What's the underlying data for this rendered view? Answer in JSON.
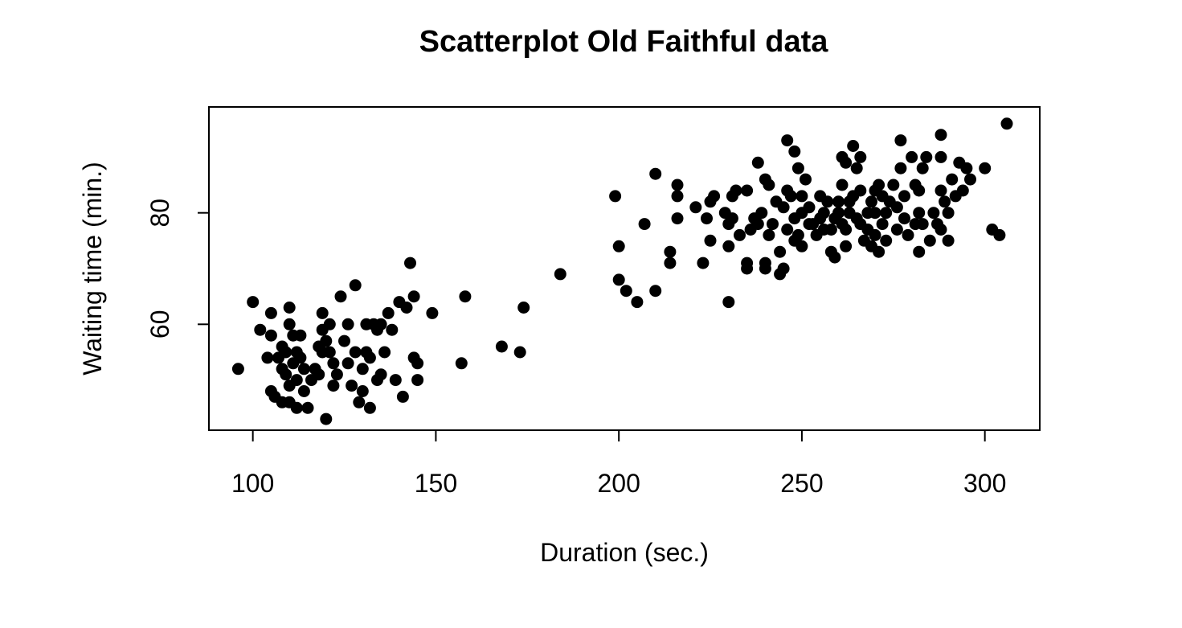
{
  "chart_data": {
    "type": "scatter",
    "title": "Scatterplot Old Faithful data",
    "xlabel": "Duration (sec.)",
    "ylabel": "Waiting time (min.)",
    "xlim": [
      88,
      315
    ],
    "ylim": [
      41,
      99
    ],
    "xticks": [
      100,
      150,
      200,
      250,
      300
    ],
    "yticks": [
      60,
      80
    ],
    "grid": false,
    "legend": "none",
    "marker_color": "#000000",
    "points": [
      [
        96,
        52
      ],
      [
        100,
        64
      ],
      [
        102,
        59
      ],
      [
        104,
        54
      ],
      [
        105,
        62
      ],
      [
        105,
        58
      ],
      [
        105,
        48
      ],
      [
        106,
        47
      ],
      [
        107,
        54
      ],
      [
        108,
        52
      ],
      [
        108,
        56
      ],
      [
        108,
        46
      ],
      [
        109,
        55
      ],
      [
        109,
        51
      ],
      [
        110,
        63
      ],
      [
        110,
        60
      ],
      [
        110,
        49
      ],
      [
        110,
        46
      ],
      [
        111,
        58
      ],
      [
        111,
        53
      ],
      [
        112,
        55
      ],
      [
        112,
        50
      ],
      [
        112,
        45
      ],
      [
        113,
        54
      ],
      [
        113,
        58
      ],
      [
        114,
        48
      ],
      [
        114,
        52
      ],
      [
        115,
        45
      ],
      [
        116,
        50
      ],
      [
        117,
        52
      ],
      [
        118,
        56
      ],
      [
        118,
        51
      ],
      [
        119,
        62
      ],
      [
        119,
        55
      ],
      [
        119,
        59
      ],
      [
        120,
        43
      ],
      [
        120,
        57
      ],
      [
        121,
        55
      ],
      [
        121,
        60
      ],
      [
        122,
        49
      ],
      [
        122,
        53
      ],
      [
        123,
        51
      ],
      [
        124,
        65
      ],
      [
        125,
        57
      ],
      [
        126,
        60
      ],
      [
        126,
        53
      ],
      [
        127,
        49
      ],
      [
        128,
        67
      ],
      [
        128,
        55
      ],
      [
        129,
        46
      ],
      [
        130,
        52
      ],
      [
        130,
        48
      ],
      [
        131,
        55
      ],
      [
        131,
        60
      ],
      [
        132,
        54
      ],
      [
        132,
        45
      ],
      [
        133,
        60
      ],
      [
        134,
        50
      ],
      [
        134,
        59
      ],
      [
        135,
        60
      ],
      [
        135,
        51
      ],
      [
        136,
        55
      ],
      [
        137,
        62
      ],
      [
        138,
        59
      ],
      [
        139,
        50
      ],
      [
        140,
        64
      ],
      [
        141,
        47
      ],
      [
        142,
        63
      ],
      [
        143,
        71
      ],
      [
        144,
        65
      ],
      [
        144,
        54
      ],
      [
        145,
        50
      ],
      [
        145,
        53
      ],
      [
        149,
        62
      ],
      [
        157,
        53
      ],
      [
        158,
        65
      ],
      [
        168,
        56
      ],
      [
        173,
        55
      ],
      [
        174,
        63
      ],
      [
        184,
        69
      ],
      [
        199,
        83
      ],
      [
        200,
        68
      ],
      [
        200,
        74
      ],
      [
        202,
        66
      ],
      [
        205,
        64
      ],
      [
        207,
        78
      ],
      [
        210,
        87
      ],
      [
        210,
        66
      ],
      [
        214,
        73
      ],
      [
        214,
        71
      ],
      [
        216,
        85
      ],
      [
        216,
        83
      ],
      [
        216,
        79
      ],
      [
        221,
        81
      ],
      [
        223,
        71
      ],
      [
        224,
        79
      ],
      [
        225,
        75
      ],
      [
        225,
        82
      ],
      [
        226,
        83
      ],
      [
        229,
        80
      ],
      [
        230,
        64
      ],
      [
        230,
        74
      ],
      [
        230,
        78
      ],
      [
        231,
        83
      ],
      [
        231,
        79
      ],
      [
        232,
        84
      ],
      [
        233,
        76
      ],
      [
        235,
        84
      ],
      [
        235,
        71
      ],
      [
        235,
        70
      ],
      [
        236,
        77
      ],
      [
        237,
        79
      ],
      [
        238,
        78
      ],
      [
        238,
        89
      ],
      [
        239,
        80
      ],
      [
        240,
        71
      ],
      [
        240,
        70
      ],
      [
        240,
        86
      ],
      [
        241,
        85
      ],
      [
        241,
        76
      ],
      [
        242,
        78
      ],
      [
        243,
        82
      ],
      [
        244,
        73
      ],
      [
        244,
        69
      ],
      [
        245,
        70
      ],
      [
        245,
        81
      ],
      [
        246,
        93
      ],
      [
        246,
        84
      ],
      [
        246,
        77
      ],
      [
        247,
        83
      ],
      [
        248,
        79
      ],
      [
        248,
        75
      ],
      [
        248,
        91
      ],
      [
        249,
        88
      ],
      [
        249,
        76
      ],
      [
        250,
        80
      ],
      [
        250,
        74
      ],
      [
        250,
        83
      ],
      [
        251,
        86
      ],
      [
        252,
        78
      ],
      [
        252,
        81
      ],
      [
        253,
        78
      ],
      [
        254,
        76
      ],
      [
        255,
        83
      ],
      [
        255,
        79
      ],
      [
        256,
        80
      ],
      [
        256,
        77
      ],
      [
        257,
        82
      ],
      [
        258,
        77
      ],
      [
        258,
        73
      ],
      [
        259,
        72
      ],
      [
        259,
        79
      ],
      [
        260,
        80
      ],
      [
        260,
        82
      ],
      [
        261,
        90
      ],
      [
        261,
        78
      ],
      [
        261,
        85
      ],
      [
        262,
        89
      ],
      [
        262,
        74
      ],
      [
        262,
        77
      ],
      [
        263,
        80
      ],
      [
        263,
        82
      ],
      [
        264,
        92
      ],
      [
        264,
        83
      ],
      [
        265,
        88
      ],
      [
        265,
        79
      ],
      [
        266,
        90
      ],
      [
        266,
        84
      ],
      [
        266,
        78
      ],
      [
        267,
        75
      ],
      [
        268,
        80
      ],
      [
        268,
        77
      ],
      [
        269,
        82
      ],
      [
        269,
        74
      ],
      [
        270,
        76
      ],
      [
        270,
        84
      ],
      [
        270,
        80
      ],
      [
        271,
        85
      ],
      [
        271,
        73
      ],
      [
        272,
        83
      ],
      [
        272,
        78
      ],
      [
        273,
        80
      ],
      [
        273,
        75
      ],
      [
        274,
        82
      ],
      [
        275,
        85
      ],
      [
        276,
        81
      ],
      [
        276,
        77
      ],
      [
        277,
        88
      ],
      [
        277,
        93
      ],
      [
        278,
        79
      ],
      [
        278,
        83
      ],
      [
        279,
        76
      ],
      [
        280,
        90
      ],
      [
        281,
        85
      ],
      [
        281,
        78
      ],
      [
        282,
        73
      ],
      [
        282,
        84
      ],
      [
        282,
        80
      ],
      [
        283,
        88
      ],
      [
        283,
        78
      ],
      [
        284,
        90
      ],
      [
        285,
        75
      ],
      [
        286,
        80
      ],
      [
        287,
        78
      ],
      [
        288,
        90
      ],
      [
        288,
        94
      ],
      [
        288,
        84
      ],
      [
        288,
        77
      ],
      [
        289,
        82
      ],
      [
        290,
        80
      ],
      [
        290,
        75
      ],
      [
        291,
        86
      ],
      [
        292,
        83
      ],
      [
        293,
        89
      ],
      [
        294,
        84
      ],
      [
        295,
        88
      ],
      [
        296,
        86
      ],
      [
        300,
        88
      ],
      [
        302,
        77
      ],
      [
        304,
        76
      ],
      [
        306,
        96
      ]
    ]
  }
}
